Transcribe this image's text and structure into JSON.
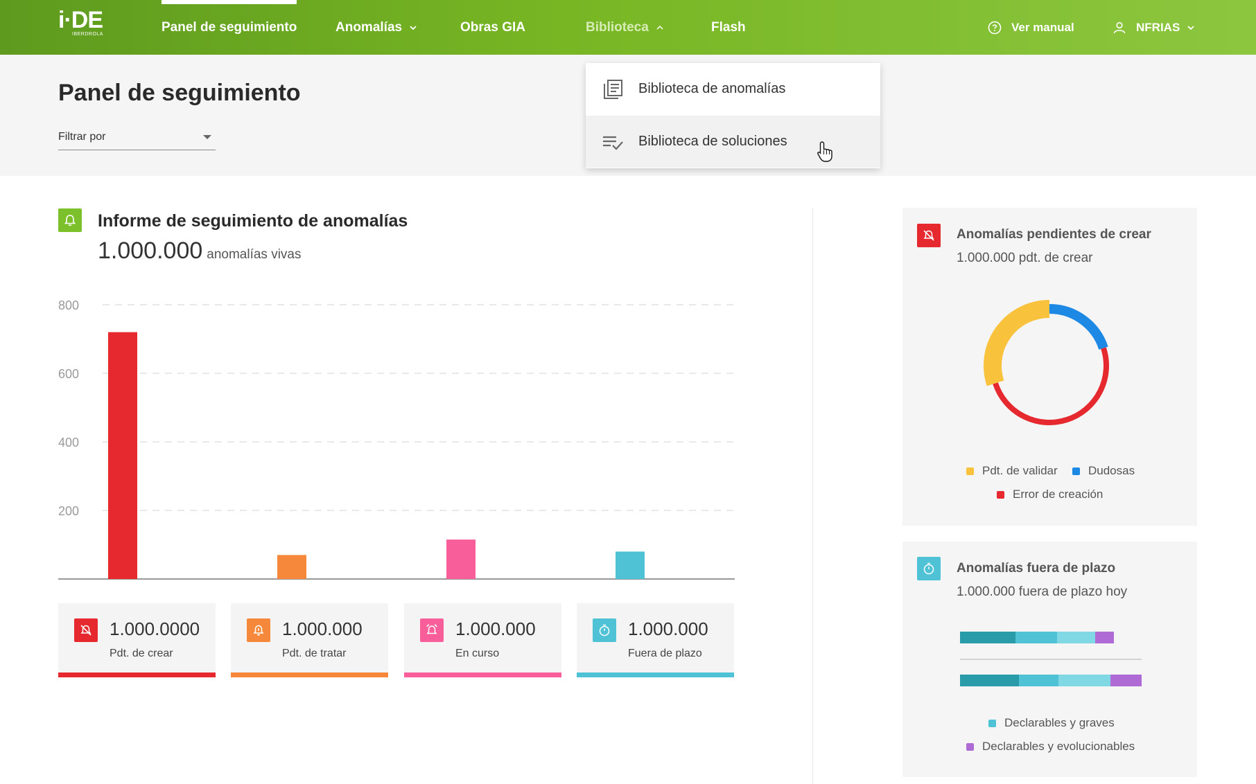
{
  "nav": {
    "logo": "i·DE",
    "logo_sub": "IBERDROLA",
    "items": [
      {
        "label": "Panel de seguimiento"
      },
      {
        "label": "Anomalías"
      },
      {
        "label": "Obras GIA"
      },
      {
        "label": "Biblioteca"
      },
      {
        "label": "Flash"
      }
    ],
    "manual_label": "Ver manual",
    "user_label": "NFRIAS"
  },
  "header": {
    "title": "Panel de seguimiento",
    "filter_placeholder": "Filtrar por"
  },
  "dropdown": {
    "items": [
      {
        "label": "Biblioteca de anomalías"
      },
      {
        "label": "Biblioteca de soluciones"
      }
    ]
  },
  "report": {
    "title": "Informe de seguimiento de anomalías",
    "count": "1.000.000",
    "count_suffix": "anomalías vivas"
  },
  "chart_data": {
    "type": "bar",
    "categories": [
      "Pdt. de crear",
      "Pdt. de tratar",
      "En curso",
      "Fuera de plazo"
    ],
    "values": [
      720,
      70,
      115,
      80
    ],
    "colors": [
      "#e5292f",
      "#f5883a",
      "#f75e9a",
      "#4fc3d5"
    ],
    "yticks": [
      200,
      400,
      600,
      800
    ],
    "ylim": [
      0,
      800
    ],
    "grid": true
  },
  "stats": [
    {
      "value": "1.000.0000",
      "label": "Pdt. de crear",
      "color": "#e5292f",
      "icon": "bell-off-icon"
    },
    {
      "value": "1.000.000",
      "label": "Pdt. de tratar",
      "color": "#f5883a",
      "icon": "bell-icon"
    },
    {
      "value": "1.000.000",
      "label": "En curso",
      "color": "#f75e9a",
      "icon": "alarm-icon"
    },
    {
      "value": "1.000.000",
      "label": "Fuera de plazo",
      "color": "#4fc3d5",
      "icon": "timer-icon"
    }
  ],
  "pending_card": {
    "title": "Anomalías pendientes de crear",
    "subtitle": "1.000.000 pdt. de crear",
    "legend": [
      {
        "label": "Pdt. de validar",
        "color": "#f9c23c"
      },
      {
        "label": "Dudosas",
        "color": "#1e88e5"
      },
      {
        "label": "Error de creación",
        "color": "#e5292f"
      }
    ],
    "donut_values": [
      30,
      20,
      50
    ]
  },
  "overdue_card": {
    "title": "Anomalías fuera de plazo",
    "subtitle": "1.000.000 fuera de plazo hoy",
    "legend": [
      {
        "label": "Declarables y graves",
        "color": "#4fc3d5"
      },
      {
        "label": "Declarables y evolucionables",
        "color": "#b06ad6"
      }
    ],
    "bars": [
      {
        "segments": [
          80,
          60,
          55,
          27
        ]
      },
      {
        "segments": [
          85,
          57,
          75,
          45
        ]
      }
    ],
    "segment_colors": [
      "#2a9ba8",
      "#4fc3d5",
      "#7fd8e4",
      "#b06ad6"
    ]
  }
}
